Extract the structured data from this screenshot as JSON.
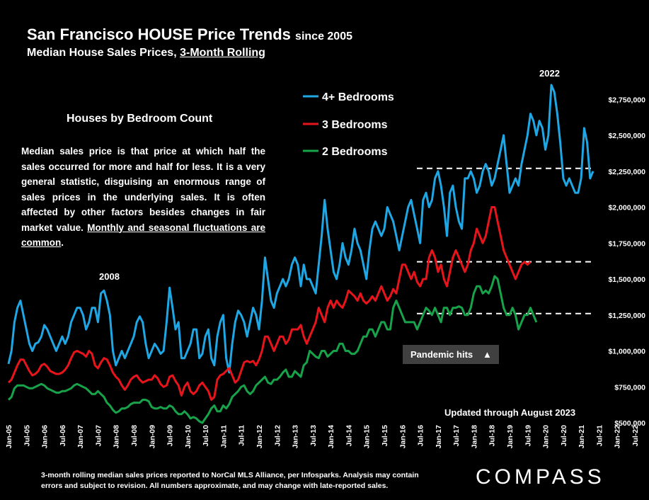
{
  "header": {
    "title": "San Francisco HOUSE Price Trends",
    "title_suffix": "since 2005",
    "subtitle_prefix": "Median House Sales Prices, ",
    "subtitle_underlined": "3-Month Rolling"
  },
  "textbox": {
    "heading": "Houses by Bedroom Count",
    "body": "Median sales price is that price at which half the sales occurred for more and half for less. It is a very general statistic, disguising an enormous range of sales prices in the underlying sales. It is often affected by other factors besides changes in fair market value.",
    "body_underlined": "Monthly and seasonal fluctuations are common",
    "body_end": "."
  },
  "footer": {
    "line1": "3-month rolling median sales prices reported to NorCal MLS Alliance, per Infosparks.  Analysis may contain",
    "line2": "errors and subject to revision. All numbers approximate, and may change with late-reported sales.",
    "logo": "COMPASS"
  },
  "colors": {
    "four_plus": "#1ea7e4",
    "three": "#e8141b",
    "two": "#17a34a",
    "background": "#000000",
    "dash": "#ffffff"
  },
  "chart_data": {
    "type": "line",
    "title": "San Francisco HOUSE Price Trends since 2005",
    "subtitle": "Median House Sales Prices, 3-Month Rolling",
    "ylim": [
      500000,
      2850000
    ],
    "y_ticks": [
      500000,
      750000,
      1000000,
      1250000,
      1500000,
      1750000,
      2000000,
      2250000,
      2500000,
      2750000
    ],
    "y_tick_labels": [
      "$500,000",
      "$750,000",
      "$1,000,000",
      "$1,250,000",
      "$1,500,000",
      "$1,750,000",
      "$2,000,000",
      "$2,250,000",
      "$2,500,000",
      "$2,750,000"
    ],
    "x_tick_labels": [
      "Jan-05",
      "Jul-05",
      "Jan-06",
      "Jul-06",
      "Jan-07",
      "Jul-07",
      "Jan-08",
      "Jul-08",
      "Jan-09",
      "Jul-09",
      "Jan-10",
      "Jul-10",
      "Jan-11",
      "Jul-11",
      "Jan-12",
      "Jul-12",
      "Jan-13",
      "Jul-13",
      "Jan-14",
      "Jul-14",
      "Jan-15",
      "Jul-15",
      "Jan-16",
      "Jul-16",
      "Jan-17",
      "Jul-17",
      "Jan-18",
      "Jul-18",
      "Jan-19",
      "Jul-19",
      "Jan-20",
      "Jul-20",
      "Jan-21",
      "Jul-21",
      "Jan-22",
      "Jul-22",
      "Jan-23",
      "Jul-23"
    ],
    "legend_placement": "top-center",
    "grid": false,
    "series": [
      {
        "name": "4+ Bedrooms",
        "color": "#1ea7e4",
        "values": [
          910000,
          1000000,
          1200000,
          1300000,
          1350000,
          1250000,
          1150000,
          1050000,
          1000000,
          1050000,
          1060000,
          1100000,
          1180000,
          1150000,
          1100000,
          1050000,
          1000000,
          1050000,
          1100000,
          1050000,
          1100000,
          1200000,
          1250000,
          1300000,
          1300000,
          1250000,
          1150000,
          1200000,
          1300000,
          1300000,
          1200000,
          1400000,
          1420000,
          1350000,
          1250000,
          1000000,
          900000,
          950000,
          1000000,
          950000,
          1000000,
          1050000,
          1100000,
          1200000,
          1240000,
          1200000,
          1050000,
          950000,
          1000000,
          1050000,
          1020000,
          980000,
          1000000,
          1200000,
          1440000,
          1300000,
          1150000,
          1200000,
          950000,
          950000,
          1000000,
          1050000,
          1150000,
          1150000,
          950000,
          980000,
          1100000,
          1150000,
          950000,
          900000,
          1100000,
          1200000,
          1250000,
          950000,
          850000,
          1050000,
          1200000,
          1280000,
          1250000,
          1200000,
          1100000,
          1200000,
          1300000,
          1250000,
          1150000,
          1350000,
          1650000,
          1500000,
          1350000,
          1300000,
          1400000,
          1450000,
          1500000,
          1450000,
          1500000,
          1600000,
          1650000,
          1600000,
          1450000,
          1600000,
          1500000,
          1500000,
          1450000,
          1400000,
          1600000,
          1800000,
          2050000,
          1850000,
          1700000,
          1550000,
          1500000,
          1600000,
          1750000,
          1650000,
          1600000,
          1700000,
          1850000,
          1750000,
          1700000,
          1600000,
          1500000,
          1700000,
          1850000,
          1900000,
          1850000,
          1800000,
          1850000,
          2000000,
          1950000,
          1900000,
          1800000,
          1700000,
          1800000,
          1900000,
          2000000,
          2050000,
          1950000,
          1850000,
          1750000,
          2050000,
          2100000,
          2000000,
          2050000,
          2200000,
          2250000,
          2150000,
          2000000,
          1800000,
          2100000,
          2150000,
          2000000,
          1900000,
          1850000,
          2200000,
          2200000,
          2250000,
          2200000,
          2100000,
          2150000,
          2250000,
          2300000,
          2250000,
          2150000,
          2200000,
          2300000,
          2400000,
          2500000,
          2300000,
          2100000,
          2150000,
          2200000,
          2150000,
          2300000,
          2400000,
          2500000,
          2650000,
          2600000,
          2500000,
          2600000,
          2550000,
          2400000,
          2500000,
          2850000,
          2800000,
          2650000,
          2450000,
          2200000,
          2150000,
          2200000,
          2150000,
          2100000,
          2100000,
          2200000,
          2550000,
          2450000,
          2200000,
          2250000
        ]
      },
      {
        "name": "3 Bedrooms",
        "color": "#e8141b",
        "values": [
          780000,
          800000,
          850000,
          900000,
          940000,
          940000,
          900000,
          860000,
          830000,
          840000,
          860000,
          900000,
          910000,
          890000,
          860000,
          850000,
          840000,
          840000,
          850000,
          870000,
          900000,
          950000,
          990000,
          1000000,
          990000,
          980000,
          960000,
          1000000,
          980000,
          900000,
          880000,
          920000,
          950000,
          940000,
          900000,
          850000,
          820000,
          800000,
          760000,
          730000,
          760000,
          800000,
          820000,
          830000,
          800000,
          780000,
          790000,
          800000,
          800000,
          830000,
          810000,
          770000,
          750000,
          760000,
          820000,
          830000,
          790000,
          760000,
          690000,
          750000,
          780000,
          720000,
          700000,
          720000,
          760000,
          780000,
          750000,
          720000,
          660000,
          680000,
          800000,
          830000,
          840000,
          860000,
          880000,
          830000,
          780000,
          800000,
          860000,
          920000,
          930000,
          920000,
          930000,
          900000,
          940000,
          1000000,
          1100000,
          1100000,
          1050000,
          1000000,
          1050000,
          1100000,
          1100000,
          1050000,
          1080000,
          1150000,
          1150000,
          1150000,
          1180000,
          1100000,
          1050000,
          1100000,
          1150000,
          1200000,
          1300000,
          1250000,
          1200000,
          1300000,
          1350000,
          1300000,
          1350000,
          1320000,
          1300000,
          1350000,
          1420000,
          1400000,
          1380000,
          1350000,
          1400000,
          1350000,
          1330000,
          1350000,
          1380000,
          1350000,
          1400000,
          1450000,
          1400000,
          1350000,
          1380000,
          1430000,
          1400000,
          1500000,
          1600000,
          1600000,
          1550000,
          1500000,
          1550000,
          1480000,
          1450000,
          1500000,
          1500000,
          1650000,
          1700000,
          1650000,
          1550000,
          1600000,
          1500000,
          1450000,
          1550000,
          1650000,
          1700000,
          1650000,
          1600000,
          1550000,
          1600000,
          1700000,
          1750000,
          1850000,
          1800000,
          1750000,
          1800000,
          1900000,
          2000000,
          2000000,
          1900000,
          1800000,
          1700000,
          1650000,
          1600000,
          1550000,
          1500000,
          1550000,
          1600000,
          1620000,
          1600000,
          1620000
        ]
      },
      {
        "name": "2 Bedrooms",
        "color": "#17a34a",
        "values": [
          660000,
          680000,
          740000,
          760000,
          760000,
          760000,
          750000,
          740000,
          740000,
          750000,
          760000,
          770000,
          760000,
          740000,
          730000,
          720000,
          710000,
          710000,
          720000,
          720000,
          730000,
          740000,
          760000,
          770000,
          760000,
          750000,
          740000,
          720000,
          700000,
          700000,
          720000,
          700000,
          680000,
          640000,
          620000,
          590000,
          570000,
          580000,
          600000,
          600000,
          610000,
          630000,
          640000,
          640000,
          640000,
          660000,
          660000,
          650000,
          610000,
          600000,
          600000,
          610000,
          600000,
          600000,
          620000,
          610000,
          580000,
          560000,
          560000,
          580000,
          560000,
          530000,
          540000,
          530000,
          510000,
          500000,
          530000,
          560000,
          600000,
          620000,
          580000,
          580000,
          620000,
          600000,
          630000,
          680000,
          700000,
          720000,
          750000,
          760000,
          720000,
          700000,
          720000,
          760000,
          780000,
          800000,
          820000,
          780000,
          770000,
          800000,
          800000,
          820000,
          850000,
          870000,
          820000,
          820000,
          860000,
          840000,
          820000,
          900000,
          920000,
          1000000,
          980000,
          960000,
          950000,
          1000000,
          1000000,
          960000,
          980000,
          1000000,
          1000000,
          1050000,
          1050000,
          1000000,
          1000000,
          980000,
          980000,
          1000000,
          1050000,
          1100000,
          1100000,
          1150000,
          1150000,
          1100000,
          1150000,
          1200000,
          1200000,
          1150000,
          1150000,
          1300000,
          1350000,
          1300000,
          1250000,
          1200000,
          1200000,
          1200000,
          1200000,
          1150000,
          1200000,
          1250000,
          1300000,
          1280000,
          1250000,
          1300000,
          1250000,
          1200000,
          1300000,
          1300000,
          1250000,
          1300000,
          1300000,
          1310000,
          1300000,
          1250000,
          1250000,
          1300000,
          1400000,
          1450000,
          1450000,
          1400000,
          1420000,
          1400000,
          1450000,
          1520000,
          1500000,
          1400000,
          1300000,
          1250000,
          1250000,
          1300000,
          1250000,
          1150000,
          1200000,
          1250000,
          1250000,
          1300000,
          1250000,
          1200000
        ]
      }
    ],
    "reference_lines": [
      2270000,
      1620000,
      1260000
    ],
    "annotations": {
      "year_2008": "2008",
      "year_2022": "2022",
      "pandemic": "Pandemic hits",
      "pandemic_arrow": "▲",
      "updated": "Updated through August 2023"
    }
  }
}
